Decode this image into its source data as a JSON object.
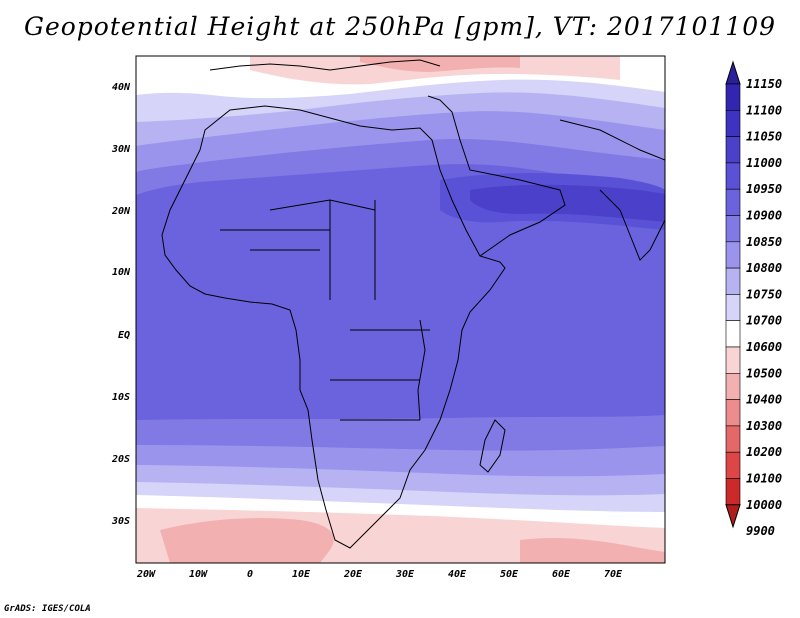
{
  "title": "Geopotential Height at 250hPa [gpm], VT: 2017101109",
  "credit": "GrADS: IGES/COLA",
  "lon_ticks": [
    "20W",
    "10W",
    "0",
    "10E",
    "20E",
    "30E",
    "40E",
    "50E",
    "60E",
    "70E"
  ],
  "lat_ticks": [
    "40N",
    "30N",
    "20N",
    "10N",
    "EQ",
    "10S",
    "20S",
    "30S"
  ],
  "colorbar": {
    "levels": [
      "11150",
      "11100",
      "11050",
      "11000",
      "10950",
      "10900",
      "10850",
      "10800",
      "10750",
      "10700",
      "10600",
      "10500",
      "10400",
      "10300",
      "10200",
      "10100",
      "10000",
      "9900"
    ],
    "colors": [
      "#2a1f9c",
      "#3226b0",
      "#3d33c0",
      "#4a40ca",
      "#5a52d6",
      "#6b63de",
      "#8179e4",
      "#9a94ec",
      "#b7b3f2",
      "#d6d4f8",
      "#ffffff",
      "#f9d4d4",
      "#f3b0b0",
      "#ec8c8c",
      "#e46868",
      "#dc4646",
      "#cc2a2a",
      "#b01d1d"
    ]
  }
}
